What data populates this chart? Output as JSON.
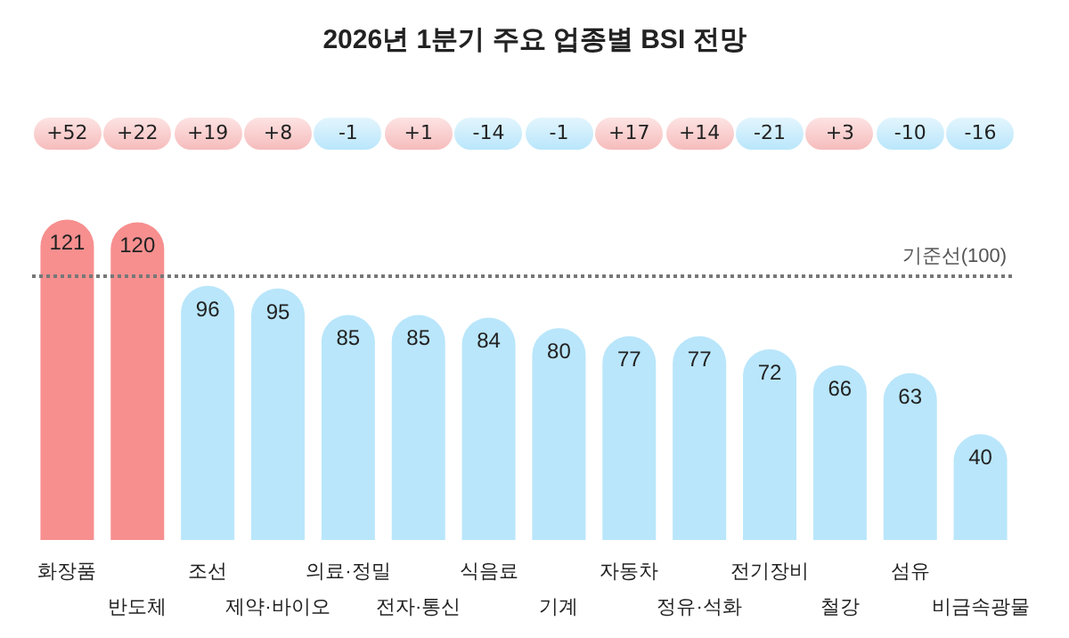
{
  "chart_data": {
    "type": "bar",
    "title": "2026년 1분기 주요 업종별 BSI 전망",
    "categories": [
      "화장품",
      "반도체",
      "조선",
      "제약·바이오",
      "의료·정밀",
      "전자·통신",
      "식음료",
      "기계",
      "자동차",
      "정유·석화",
      "전기장비",
      "철강",
      "섬유",
      "비금속광물"
    ],
    "values": [
      121,
      120,
      96,
      95,
      85,
      85,
      84,
      80,
      77,
      77,
      72,
      66,
      63,
      40
    ],
    "colors": [
      "#f78f8f",
      "#f78f8f",
      "#b9e6fb",
      "#b9e6fb",
      "#b9e6fb",
      "#b9e6fb",
      "#b9e6fb",
      "#b9e6fb",
      "#b9e6fb",
      "#b9e6fb",
      "#b9e6fb",
      "#b9e6fb",
      "#b9e6fb",
      "#b9e6fb"
    ],
    "data_labels": true,
    "ref_lines": [
      {
        "axis": "y",
        "value": 100,
        "label": "기준선(100)",
        "color": "#777777",
        "line_style": "dotted"
      }
    ],
    "annotations": [
      "+52",
      "+22",
      "+19",
      "+8",
      "-1",
      "+1",
      "-14",
      "-1",
      "+17",
      "+14",
      "-21",
      "+3",
      "-10",
      "-16"
    ]
  }
}
